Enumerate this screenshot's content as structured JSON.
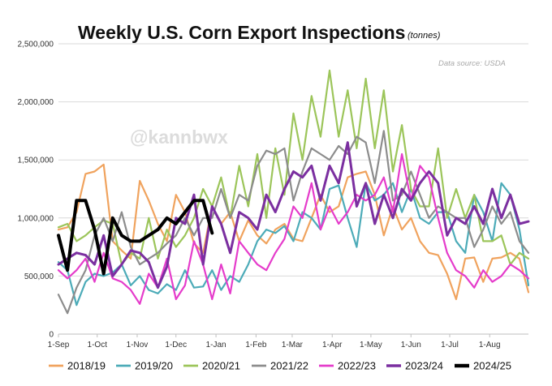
{
  "chart_data": {
    "type": "line",
    "title": "Weekly U.S. Corn Export Inspections",
    "subtitle": "(tonnes)",
    "source": "Data source: USDA",
    "watermark": "@kannbwx",
    "ylim": [
      0,
      2500000
    ],
    "y_ticks": [
      {
        "value": 0,
        "label": "0"
      },
      {
        "value": 500000,
        "label": "500,000"
      },
      {
        "value": 1000000,
        "label": "1,000,000"
      },
      {
        "value": 1500000,
        "label": "1,500,000"
      },
      {
        "value": 2000000,
        "label": "2,000,000"
      },
      {
        "value": 2500000,
        "label": "2,500,000"
      }
    ],
    "x_ticks": [
      {
        "week": 0,
        "label": "1-Sep"
      },
      {
        "week": 4.29,
        "label": "1-Oct"
      },
      {
        "week": 8.71,
        "label": "1-Nov"
      },
      {
        "week": 13,
        "label": "1-Dec"
      },
      {
        "week": 17.43,
        "label": "1-Jan"
      },
      {
        "week": 21.86,
        "label": "1-Feb"
      },
      {
        "week": 25.86,
        "label": "1-Mar"
      },
      {
        "week": 30.29,
        "label": "1-Apr"
      },
      {
        "week": 34.57,
        "label": "1-May"
      },
      {
        "week": 39,
        "label": "1-Jun"
      },
      {
        "week": 43.29,
        "label": "1-Jul"
      },
      {
        "week": 47.71,
        "label": "1-Aug"
      }
    ],
    "x_range_weeks": [
      0,
      52
    ],
    "grid": "horizontal",
    "legend_position": "bottom",
    "series": [
      {
        "name": "2018/19",
        "color": "#f0a35e",
        "width": 2.2,
        "values": [
          900000,
          920000,
          1050000,
          1380000,
          1400000,
          1460000,
          800000,
          720000,
          650000,
          1320000,
          1150000,
          950000,
          800000,
          1200000,
          1050000,
          780000,
          700000,
          1100000,
          950000,
          1050000,
          800000,
          980000,
          850000,
          780000,
          900000,
          950000,
          820000,
          800000,
          1000000,
          1200000,
          1050000,
          1100000,
          1350000,
          1380000,
          1400000,
          1200000,
          850000,
          1100000,
          900000,
          1000000,
          800000,
          700000,
          680000,
          520000,
          300000,
          650000,
          660000,
          450000,
          650000,
          660000,
          700000,
          650000,
          360000
        ]
      },
      {
        "name": "2019/20",
        "color": "#4cabb8",
        "width": 2.2,
        "values": [
          620000,
          550000,
          250000,
          450000,
          520000,
          500000,
          530000,
          600000,
          420000,
          500000,
          380000,
          350000,
          430000,
          380000,
          550000,
          400000,
          410000,
          550000,
          380000,
          500000,
          450000,
          600000,
          800000,
          900000,
          870000,
          930000,
          800000,
          1050000,
          1000000,
          900000,
          1250000,
          1280000,
          1000000,
          750000,
          1300000,
          1150000,
          1200000,
          1300000,
          1050000,
          1250000,
          1000000,
          950000,
          1050000,
          1050000,
          800000,
          700000,
          1200000,
          1050000,
          800000,
          1300000,
          1200000,
          900000,
          420000
        ]
      },
      {
        "name": "2020/21",
        "color": "#9cc55a",
        "width": 2.2,
        "values": [
          920000,
          950000,
          800000,
          850000,
          920000,
          980000,
          950000,
          600000,
          700000,
          650000,
          1000000,
          650000,
          900000,
          750000,
          850000,
          1000000,
          1250000,
          1100000,
          1350000,
          1000000,
          1450000,
          1100000,
          1550000,
          1000000,
          1600000,
          1200000,
          1900000,
          1500000,
          2050000,
          1700000,
          2270000,
          1700000,
          2100000,
          1600000,
          2200000,
          1600000,
          2100000,
          1400000,
          1800000,
          1250000,
          1100000,
          1100000,
          1600000,
          1000000,
          1250000,
          1000000,
          1200000,
          800000,
          800000,
          850000,
          600000,
          700000,
          650000
        ]
      },
      {
        "name": "2021/22",
        "color": "#8c8c8c",
        "width": 2.2,
        "values": [
          340000,
          180000,
          400000,
          550000,
          850000,
          1000000,
          800000,
          1050000,
          750000,
          600000,
          650000,
          700000,
          780000,
          850000,
          1000000,
          850000,
          1000000,
          1000000,
          1250000,
          1000000,
          1200000,
          1150000,
          1450000,
          1580000,
          1550000,
          1600000,
          1150000,
          1400000,
          1600000,
          1550000,
          1500000,
          1620000,
          1550000,
          1700000,
          1650000,
          1300000,
          1750000,
          1150000,
          1200000,
          1400000,
          1200000,
          1000000,
          1100000,
          1050000,
          1000000,
          1000000,
          750000,
          900000,
          1100000,
          950000,
          1050000,
          800000,
          700000
        ]
      },
      {
        "name": "2022/23",
        "color": "#e53ccb",
        "width": 2.2,
        "values": [
          550000,
          480000,
          550000,
          650000,
          450000,
          700000,
          480000,
          450000,
          380000,
          260000,
          520000,
          400000,
          650000,
          300000,
          420000,
          800000,
          600000,
          300000,
          600000,
          350000,
          800000,
          700000,
          600000,
          550000,
          700000,
          820000,
          1100000,
          1000000,
          1300000,
          900000,
          1100000,
          950000,
          1050000,
          1200000,
          1150000,
          1200000,
          1350000,
          1050000,
          1550000,
          1150000,
          1450000,
          1350000,
          1000000,
          700000,
          550000,
          500000,
          400000,
          550000,
          450000,
          500000,
          600000,
          550000,
          480000
        ]
      },
      {
        "name": "2023/24",
        "color": "#7b2fa0",
        "width": 3.0,
        "values": [
          600000,
          650000,
          700000,
          680000,
          600000,
          850000,
          500000,
          600000,
          720000,
          700000,
          620000,
          400000,
          580000,
          1000000,
          950000,
          1200000,
          600000,
          1100000,
          950000,
          700000,
          1050000,
          1000000,
          900000,
          1200000,
          1050000,
          1250000,
          1400000,
          1350000,
          1450000,
          1150000,
          1450000,
          1300000,
          1650000,
          1100000,
          1300000,
          950000,
          1200000,
          1000000,
          1250000,
          1150000,
          1300000,
          1400000,
          1300000,
          850000,
          1000000,
          950000,
          1100000,
          950000,
          1250000,
          1000000,
          1200000,
          950000,
          970000
        ]
      },
      {
        "name": "2024/25",
        "color": "#000000",
        "width": 4.0,
        "values": [
          850000,
          550000,
          1150000,
          1150000,
          900000,
          520000,
          1000000,
          850000,
          800000,
          800000,
          850000,
          900000,
          1000000,
          950000,
          1050000,
          1150000,
          1150000,
          870000
        ]
      }
    ]
  }
}
